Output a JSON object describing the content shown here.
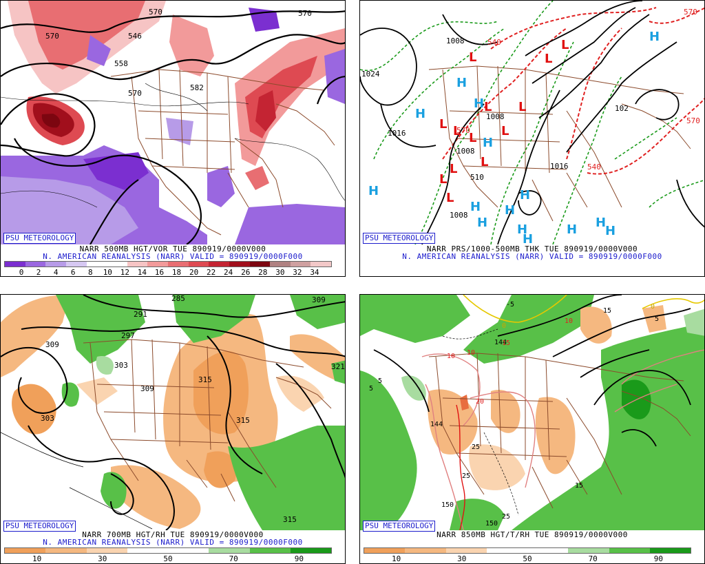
{
  "panels": [
    {
      "id": "vor500",
      "psu_label": "PSU METEOROLOGY",
      "title_line1": "NARR 500MB HGT/VOR TUE 890919/0000V000",
      "title_line2": "N. AMERICAN REANALYSIS (NARR) VALID = 890919/0000F000",
      "colorbar": {
        "colors": [
          "#7b2fd0",
          "#9a67e0",
          "#b79be8",
          "#d6c8f2",
          "#ffffff",
          "#ffffff",
          "#f6c4c4",
          "#f29a9a",
          "#e86e72",
          "#de4a52",
          "#c42433",
          "#a10f1c",
          "#7c0610",
          "#b08282",
          "#cfa0a0",
          "#f2c8c8"
        ],
        "tick_labels": [
          "0",
          "2",
          "4",
          "6",
          "8",
          "10",
          "12",
          "14",
          "16",
          "18",
          "20",
          "22",
          "24",
          "26",
          "28",
          "30",
          "32",
          "34"
        ]
      },
      "contour_labels": [
        "570",
        "546",
        "558",
        "570",
        "582",
        "570",
        "570"
      ]
    },
    {
      "id": "prs1000",
      "psu_label": "PSU METEOROLOGY",
      "title_line1": "NARR PRS/1000-500MB THK TUE 890919/0000V000",
      "title_line2": "N. AMERICAN REANALYSIS (NARR) VALID = 890919/0000F000",
      "contour_labels": [
        "1024",
        "1016",
        "1008",
        "1008",
        "1008",
        "1008",
        "1016",
        "102",
        "540",
        "540",
        "570",
        "570",
        "570",
        "510"
      ],
      "high_symbol": "H",
      "low_symbol": "L"
    },
    {
      "id": "rh700",
      "psu_label": "PSU METEOROLOGY",
      "title_line1": "NARR 700MB HGT/RH TUE 890919/0000V000",
      "title_line2": "N. AMERICAN REANALYSIS (NARR) VALID = 890919/0000F000",
      "colorbar": {
        "colors": [
          "#f0a05a",
          "#f5b880",
          "#fad4b0",
          "#ffffff",
          "#ffffff",
          "#a8dca0",
          "#58c048",
          "#1a9a1a"
        ],
        "tick_labels": [
          "10",
          "30",
          "50",
          "70",
          "90"
        ]
      },
      "contour_labels": [
        "285",
        "291",
        "297",
        "303",
        "309",
        "309",
        "315",
        "315",
        "303",
        "309",
        "321",
        "315"
      ]
    },
    {
      "id": "t850",
      "psu_label": "PSU METEOROLOGY",
      "title_line1": "NARR 850MB HGT/T/RH TUE 890919/0000V000",
      "colorbar": {
        "colors": [
          "#f0a05a",
          "#f5b880",
          "#fad4b0",
          "#ffffff",
          "#ffffff",
          "#a8dca0",
          "#58c048",
          "#1a9a1a"
        ],
        "tick_labels": [
          "10",
          "30",
          "50",
          "70",
          "90"
        ]
      },
      "contour_labels": [
        "-5",
        "10",
        "10",
        "10",
        "144",
        "144",
        "20",
        "25",
        "25",
        "150",
        "150",
        "25",
        "15",
        "15",
        "5",
        "5",
        "0",
        "5",
        "15",
        "0"
      ]
    }
  ],
  "colors": {
    "border_brown": "#8b4a2b",
    "height_black": "#000000",
    "thk_red": "#e02020",
    "thk_green": "#1a9a1a",
    "high_cyan": "#1aa0e0",
    "low_red": "#e01010"
  }
}
